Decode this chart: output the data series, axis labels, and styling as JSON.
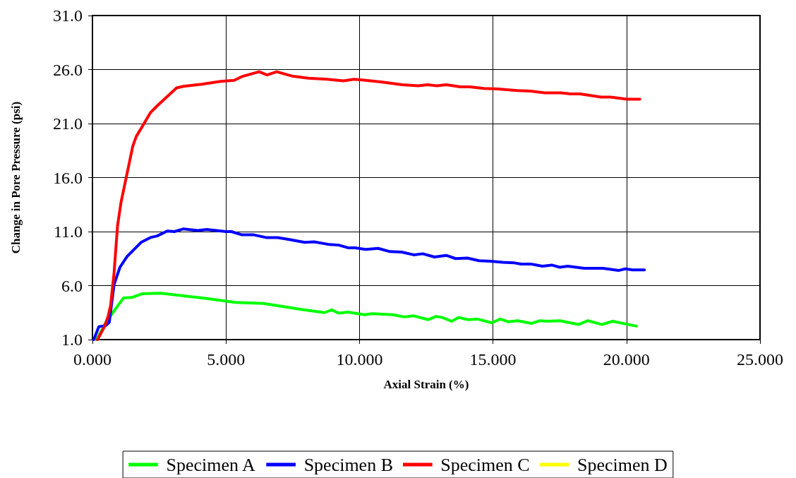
{
  "chart_data": {
    "type": "line",
    "xlabel": "Axial Strain (%)",
    "ylabel": "Change in Pore Pressure (psi)",
    "xlim": [
      0,
      25
    ],
    "ylim": [
      1,
      31
    ],
    "xticks": [
      {
        "value": 0,
        "label": "0.000"
      },
      {
        "value": 5,
        "label": "5.000"
      },
      {
        "value": 10,
        "label": "10.000"
      },
      {
        "value": 15,
        "label": "15.000"
      },
      {
        "value": 20,
        "label": "20.000"
      },
      {
        "value": 25,
        "label": "25.000"
      }
    ],
    "yticks": [
      {
        "value": 1,
        "label": "1.0"
      },
      {
        "value": 6,
        "label": "6.0"
      },
      {
        "value": 11,
        "label": "11.0"
      },
      {
        "value": 16,
        "label": "16.0"
      },
      {
        "value": 21,
        "label": "21.0"
      },
      {
        "value": 26,
        "label": "26.0"
      },
      {
        "value": 31,
        "label": "31.0"
      }
    ],
    "grid": true,
    "legend": "bottom",
    "marker": "none",
    "line_style": "solid",
    "series": [
      {
        "name": "Specimen A",
        "color": "#00ff00",
        "x": [
          0.16,
          0.5,
          1.16,
          1.47,
          1.88,
          2.54,
          3.41,
          4.28,
          5.34,
          6.4,
          7.03,
          7.82,
          8.69,
          8.96,
          9.22,
          9.57,
          10.2,
          10.46,
          11.26,
          11.68,
          12.03,
          12.58,
          12.87,
          13.1,
          13.45,
          13.72,
          14.07,
          14.42,
          14.96,
          15.27,
          15.58,
          15.93,
          16.44,
          16.75,
          17.06,
          17.5,
          18.2,
          18.56,
          19.08,
          19.48,
          20.37
        ],
        "values": [
          1.0,
          2.6,
          4.85,
          4.9,
          5.25,
          5.3,
          5.05,
          4.8,
          4.45,
          4.35,
          4.1,
          3.8,
          3.5,
          3.75,
          3.45,
          3.55,
          3.3,
          3.4,
          3.3,
          3.1,
          3.2,
          2.85,
          3.15,
          3.05,
          2.7,
          3.05,
          2.85,
          2.9,
          2.55,
          2.9,
          2.65,
          2.75,
          2.5,
          2.75,
          2.7,
          2.75,
          2.4,
          2.75,
          2.4,
          2.7,
          2.25
        ]
      },
      {
        "name": "Specimen B",
        "color": "#0000ff",
        "x": [
          0.05,
          0.24,
          0.5,
          0.63,
          0.81,
          1.03,
          1.3,
          1.82,
          2.17,
          2.43,
          2.8,
          3.07,
          3.41,
          3.94,
          4.28,
          5.0,
          5.2,
          5.6,
          6.04,
          6.5,
          6.93,
          7.3,
          7.95,
          8.3,
          8.88,
          9.22,
          9.57,
          9.83,
          10.23,
          10.7,
          11.14,
          11.58,
          12.03,
          12.37,
          12.81,
          13.25,
          13.6,
          14.04,
          14.48,
          14.92,
          15.36,
          15.8,
          16.06,
          16.41,
          16.85,
          17.2,
          17.5,
          17.8,
          18.42,
          19.12,
          19.7,
          19.96,
          20.22,
          20.67
        ],
        "values": [
          1.0,
          2.2,
          2.3,
          2.6,
          6.1,
          7.7,
          8.7,
          10.0,
          10.45,
          10.6,
          11.05,
          11.0,
          11.25,
          11.1,
          11.2,
          11.0,
          11.0,
          10.7,
          10.7,
          10.45,
          10.45,
          10.3,
          10.0,
          10.05,
          9.8,
          9.75,
          9.5,
          9.5,
          9.35,
          9.45,
          9.15,
          9.1,
          8.85,
          8.95,
          8.65,
          8.8,
          8.5,
          8.55,
          8.3,
          8.25,
          8.15,
          8.1,
          8.0,
          8.0,
          7.8,
          7.9,
          7.7,
          7.8,
          7.6,
          7.6,
          7.4,
          7.55,
          7.45,
          7.45
        ]
      },
      {
        "name": "Specimen C",
        "color": "#ff0000",
        "x": [
          0.19,
          0.45,
          0.58,
          0.68,
          0.81,
          0.94,
          1.07,
          1.29,
          1.51,
          1.64,
          1.86,
          2.17,
          2.43,
          2.8,
          3.15,
          3.41,
          4.1,
          4.8,
          5.31,
          5.6,
          6.24,
          6.54,
          6.9,
          7.47,
          8.09,
          8.79,
          9.4,
          9.8,
          10.23,
          10.8,
          11.6,
          12.2,
          12.55,
          12.9,
          13.25,
          13.78,
          14.13,
          14.66,
          15.19,
          15.9,
          16.4,
          16.94,
          17.55,
          17.9,
          18.26,
          19.05,
          19.4,
          20.02,
          20.5
        ],
        "values": [
          1.0,
          2.2,
          3.1,
          4.15,
          7.2,
          11.55,
          13.7,
          16.3,
          18.9,
          19.8,
          20.7,
          22.0,
          22.65,
          23.5,
          24.3,
          24.45,
          24.65,
          24.9,
          25.0,
          25.35,
          25.8,
          25.5,
          25.8,
          25.4,
          25.2,
          25.1,
          24.95,
          25.1,
          25.0,
          24.85,
          24.6,
          24.5,
          24.6,
          24.5,
          24.6,
          24.4,
          24.4,
          24.25,
          24.2,
          24.05,
          24.0,
          23.85,
          23.85,
          23.75,
          23.75,
          23.45,
          23.45,
          23.25,
          23.25
        ]
      },
      {
        "name": "Specimen D",
        "color": "#ffff00"
      }
    ]
  }
}
